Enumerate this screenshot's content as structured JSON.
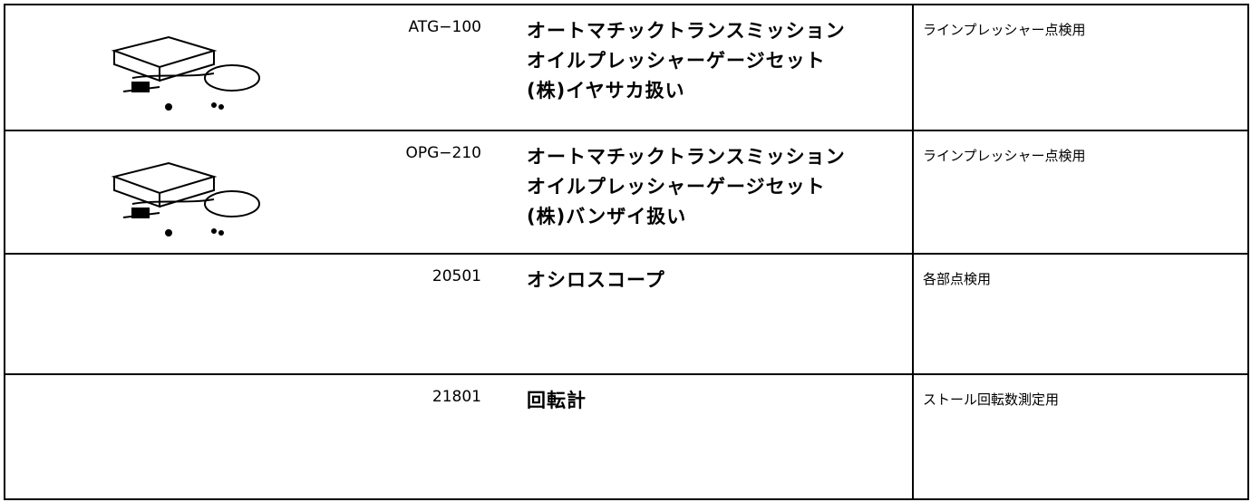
{
  "table": {
    "rows": [
      {
        "code": "ATG−100",
        "name": [
          "オートマチックトランスミッション",
          "オイルプレッシャーゲージセット",
          "(株)イヤサカ扱い"
        ],
        "note": "ラインプレッシャー点検用"
      },
      {
        "code": "OPG−210",
        "name": [
          "オートマチックトランスミッション",
          "オイルプレッシャーゲージセット",
          "(株)バンザイ扱い"
        ],
        "note": "ラインプレッシャー点検用"
      },
      {
        "code": "20501",
        "name": [
          "オシロスコープ"
        ],
        "note": "各部点検用"
      },
      {
        "code": "21801",
        "name": [
          "回転計"
        ],
        "note": "ストール回転数測定用"
      }
    ]
  }
}
